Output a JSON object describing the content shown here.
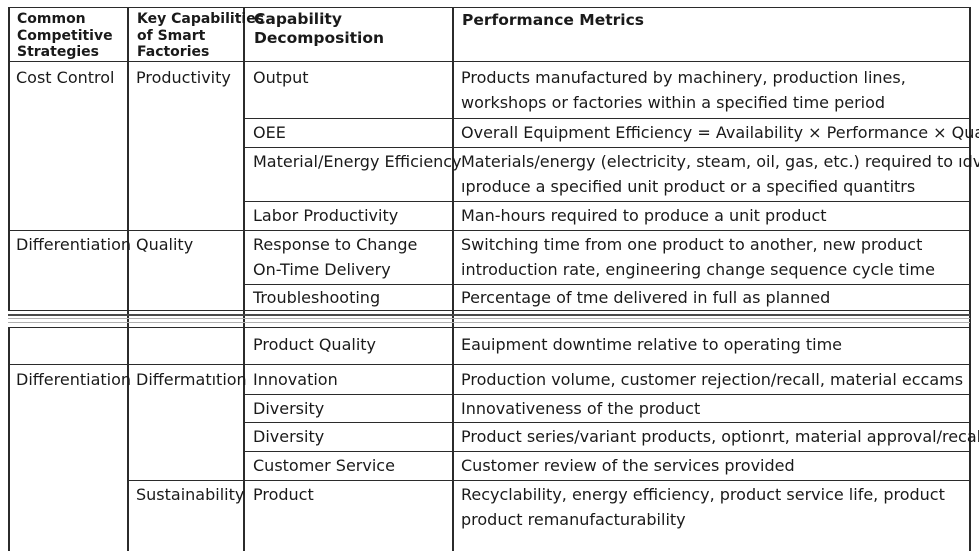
{
  "headers": {
    "col1": [
      "Common",
      "Competitive",
      "Strategies"
    ],
    "col2": [
      "Key Capabilities",
      "of Smart",
      "Factories"
    ],
    "col3": [
      "Capability",
      "Decomposition"
    ],
    "col4": "Performance Metrics"
  },
  "rows": {
    "r1": {
      "strategy": "Cost Control",
      "capability": "Productivity",
      "decomp": "Output",
      "metric": [
        "Products manufactured by machinery, production lines,",
        "workshops or factories within a specified time period"
      ]
    },
    "r2": {
      "decomp": "OEE",
      "metric": [
        "Overall Equipment Efficiency = Availability × Performance × Quality"
      ]
    },
    "r3": {
      "decomp": "Material/Energy Efficiency",
      "metric": [
        "Materials/energy (electricity, steam, oil, gas, etc.) required to ıdvr",
        "ıproduce a specified unit product or a specified quantitrs"
      ]
    },
    "r4": {
      "decomp": "Labor Productivity",
      "metric": [
        "Man-hours required to produce a unit product"
      ]
    },
    "r5": {
      "strategy": "Differentiation",
      "capability": "Quality",
      "decomp": [
        "Response to Change",
        "On-Time Delivery"
      ],
      "metric": [
        "Switching time from one product to another, new product",
        "introduction rate, engineering change sequence cycle time"
      ]
    },
    "r6": {
      "decomp": "Troubleshooting",
      "metric": [
        "Percentage of tme delivered in full as planned"
      ]
    },
    "r7": {
      "decomp": "Product Quality",
      "metric": [
        "Eauipment downtime relative to operating time"
      ]
    },
    "r8": {
      "strategy": "Differentiation",
      "capability": "Differmatıtion",
      "decomp": "Innovation",
      "metric": [
        "Production volume, customer rejection/recall, material eccams"
      ]
    },
    "r9": {
      "decomp": "Diversity",
      "metric": [
        "Innovativeness of the product"
      ]
    },
    "r10": {
      "decomp": "Diversity",
      "metric": [
        "Product series/variant products, optionrt, material approval/recall"
      ]
    },
    "r11": {
      "decomp": "Customer Service",
      "metric": [
        "Customer review of the services provided"
      ]
    },
    "r12": {
      "capability": "Sustainability",
      "decomp": "Product",
      "metric": [
        "Recyclability, energy efficiency, product service life, product",
        "product remanufacturability"
      ]
    }
  }
}
